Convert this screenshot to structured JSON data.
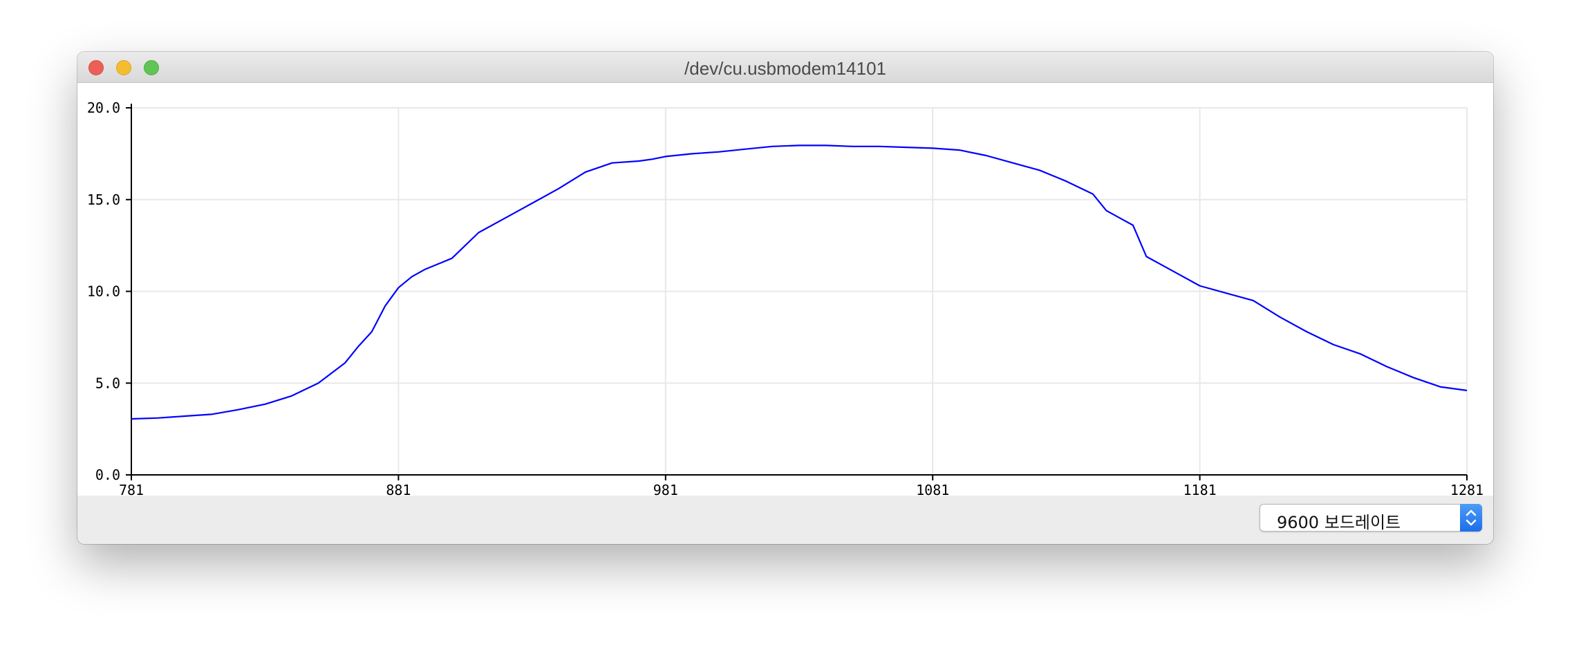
{
  "window": {
    "title": "/dev/cu.usbmodem14101"
  },
  "baud_select": {
    "selected": "9600 보드레이트"
  },
  "colors": {
    "series": "#0000ff",
    "axis": "#000000",
    "grid": "#e8e8e8",
    "select_accent": "#1c6ee9"
  },
  "icons": {
    "close": "close-icon",
    "minimize": "minimize-icon",
    "zoom": "zoom-icon",
    "select_arrows": "chevron-updown-icon"
  },
  "chart_data": {
    "type": "line",
    "title": "",
    "xlabel": "",
    "ylabel": "",
    "xlim": [
      781,
      1281
    ],
    "ylim": [
      0,
      20
    ],
    "xticks": [
      "781",
      "881",
      "981",
      "1081",
      "1181",
      "1281"
    ],
    "yticks": [
      "0.0",
      "5.0",
      "10.0",
      "15.0",
      "20.0"
    ],
    "grid": true,
    "legend": "none",
    "series": [
      {
        "x": [
          781,
          791,
          801,
          811,
          821,
          831,
          841,
          851,
          861,
          866,
          871,
          876,
          881,
          886,
          891,
          901,
          911,
          921,
          931,
          941,
          951,
          961,
          971,
          976,
          981,
          991,
          1001,
          1011,
          1021,
          1031,
          1041,
          1051,
          1061,
          1071,
          1081,
          1091,
          1101,
          1111,
          1121,
          1131,
          1141,
          1146,
          1151,
          1156,
          1161,
          1166,
          1171,
          1181,
          1191,
          1201,
          1211,
          1221,
          1231,
          1241,
          1251,
          1261,
          1271,
          1281
        ],
        "y": [
          3.05,
          3.1,
          3.2,
          3.3,
          3.55,
          3.85,
          4.3,
          5.0,
          6.1,
          7.0,
          7.8,
          9.2,
          10.2,
          10.8,
          11.2,
          11.8,
          13.2,
          14.0,
          14.8,
          15.6,
          16.5,
          17.0,
          17.1,
          17.2,
          17.35,
          17.5,
          17.6,
          17.75,
          17.9,
          17.95,
          17.95,
          17.9,
          17.9,
          17.85,
          17.8,
          17.7,
          17.4,
          17.0,
          16.6,
          16.0,
          15.3,
          14.4,
          14.0,
          13.6,
          11.9,
          11.5,
          11.1,
          10.3,
          9.9,
          9.5,
          8.6,
          7.8,
          7.1,
          6.6,
          5.9,
          5.3,
          4.8,
          4.6
        ]
      }
    ]
  }
}
